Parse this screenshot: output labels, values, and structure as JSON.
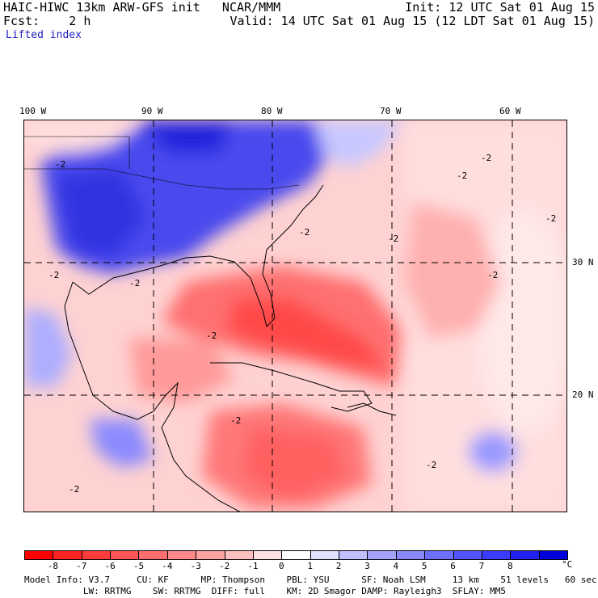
{
  "header": {
    "title": "HAIC-HIWC 13km ARW-GFS init   NCAR/MMM",
    "init": "Init: 12 UTC Sat 01 Aug 15",
    "fcst": "Fcst:    2 h",
    "valid": "Valid: 14 UTC Sat 01 Aug 15 (12 LDT Sat 01 Aug 15)",
    "field": "Lifted index"
  },
  "longitude_labels": [
    "100 W",
    "90 W",
    "80 W",
    "70 W",
    "60 W"
  ],
  "latitude_labels": [
    "30 N",
    "20 N"
  ],
  "contour_labels": [
    "-2"
  ],
  "colorbar": {
    "ticks": [
      "-8",
      "-7",
      "-6",
      "-5",
      "-4",
      "-3",
      "-2",
      "-1",
      "0",
      "1",
      "2",
      "3",
      "4",
      "5",
      "6",
      "7",
      "8"
    ],
    "unit": "°C",
    "colors": [
      "#ff0000",
      "#ff2222",
      "#ff3c3c",
      "#ff5555",
      "#ff6e6e",
      "#ff8888",
      "#ffa3a3",
      "#ffc0c0",
      "#ffe0e0",
      "#ffffff",
      "#e0e0ff",
      "#c0c0ff",
      "#a3a3ff",
      "#8888ff",
      "#6e6eff",
      "#5555ff",
      "#3c3cff",
      "#2222ee",
      "#0000dd"
    ]
  },
  "footer": {
    "line1": "Model Info: V3.7     CU: KF      MP: Thompson    PBL: YSU      SF: Noah LSM     13 km    51 levels   60 sec",
    "line2": "           LW: RRTMG    SW: RRTMG  DIFF: full    KM: 2D Smagor DAMP: Rayleigh3  SFLAY: MM5"
  }
}
